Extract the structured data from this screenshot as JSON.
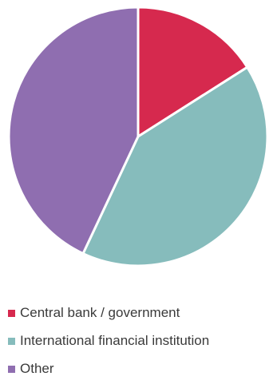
{
  "chart_data": {
    "type": "pie",
    "title": "",
    "categories": [
      "Central bank / government",
      "International financial institution",
      "Other"
    ],
    "values": [
      16,
      41,
      43
    ],
    "unit": "percent (estimated)",
    "colors": [
      "#d6294e",
      "#86bcbc",
      "#8f6eb0"
    ],
    "legend_position": "bottom"
  },
  "legend": {
    "items": [
      {
        "label": "Central bank / government",
        "color": "#d6294e"
      },
      {
        "label": "International financial institution",
        "color": "#86bcbc"
      },
      {
        "label": "Other",
        "color": "#8f6eb0"
      }
    ]
  }
}
